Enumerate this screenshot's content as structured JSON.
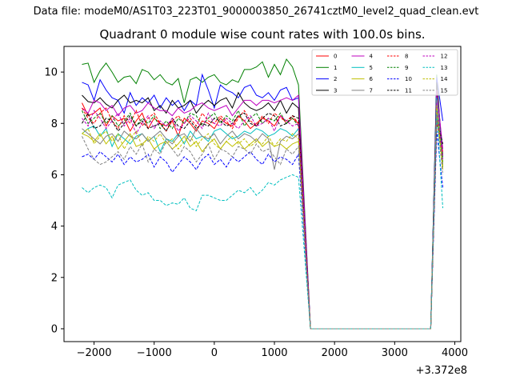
{
  "suptitle": "Data file: modeM0/AS1T03_223T01_9000003850_26741cztM0_level2_quad_clean.evt",
  "chart_data": {
    "type": "line",
    "title": "Quadrant 0 module wise count rates with 100.0s bins.",
    "xlabel": "",
    "ylabel": "",
    "x_offset_label": "+3.372e8",
    "xlim": [
      -2500,
      4100
    ],
    "ylim": [
      -0.5,
      11.0
    ],
    "xticks": [
      -2000,
      -1000,
      0,
      1000,
      2000,
      3000,
      4000
    ],
    "xtick_labels": [
      "−2000",
      "−1000",
      "0",
      "1000",
      "2000",
      "3000",
      "4000"
    ],
    "yticks": [
      0,
      2,
      4,
      6,
      8,
      10
    ],
    "ytick_labels": [
      "0",
      "2",
      "4",
      "6",
      "8",
      "10"
    ],
    "x": [
      -2200,
      -2100,
      -2000,
      -1900,
      -1800,
      -1700,
      -1600,
      -1500,
      -1400,
      -1300,
      -1200,
      -1100,
      -1000,
      -900,
      -800,
      -700,
      -600,
      -500,
      -400,
      -300,
      -200,
      -100,
      0,
      100,
      200,
      300,
      400,
      500,
      600,
      700,
      800,
      900,
      1000,
      1100,
      1200,
      1300,
      1400,
      1600,
      3500,
      3600,
      3700,
      3800
    ],
    "legend_location": "top-right",
    "series": [
      {
        "name": "0",
        "color": "#ff0000",
        "dash": "solid",
        "values": [
          8.8,
          8.3,
          8.4,
          8.6,
          7.9,
          8.3,
          8.1,
          8.2,
          7.7,
          8.1,
          8.4,
          7.8,
          8.2,
          8.0,
          7.9,
          8.1,
          7.5,
          8.2,
          8.0,
          7.7,
          8.1,
          8.0,
          7.8,
          8.2,
          8.0,
          7.9,
          8.3,
          8.1,
          7.8,
          8.0,
          8.2,
          8.1,
          7.9,
          8.3,
          8.0,
          8.2,
          8.0,
          0,
          0,
          0,
          8.3,
          6.8
        ]
      },
      {
        "name": "1",
        "color": "#008000",
        "dash": "solid",
        "values": [
          10.3,
          10.35,
          9.6,
          10.05,
          10.35,
          10.0,
          9.6,
          9.8,
          9.85,
          9.55,
          10.1,
          10.0,
          9.7,
          9.9,
          9.6,
          9.5,
          9.75,
          8.8,
          9.7,
          9.8,
          9.6,
          9.8,
          9.9,
          9.6,
          9.5,
          9.7,
          9.6,
          10.1,
          10.1,
          10.2,
          10.4,
          9.8,
          10.3,
          9.9,
          10.5,
          10.2,
          9.5,
          0,
          0,
          0,
          9.9,
          6.3
        ]
      },
      {
        "name": "2",
        "color": "#0000ff",
        "dash": "solid",
        "values": [
          9.6,
          9.5,
          8.9,
          9.7,
          9.3,
          9.0,
          8.9,
          8.4,
          9.2,
          8.7,
          9.0,
          8.8,
          9.1,
          8.6,
          9.0,
          8.7,
          8.9,
          8.5,
          8.9,
          8.7,
          9.9,
          9.3,
          8.6,
          9.5,
          9.3,
          9.2,
          9.0,
          9.4,
          9.5,
          9.1,
          9.0,
          9.2,
          8.9,
          9.3,
          9.4,
          8.9,
          9.0,
          0,
          0,
          0,
          9.8,
          8.1
        ]
      },
      {
        "name": "3",
        "color": "#000000",
        "dash": "solid",
        "values": [
          9.1,
          8.85,
          8.8,
          9.0,
          8.75,
          8.6,
          8.9,
          9.1,
          8.8,
          8.9,
          8.8,
          9.0,
          8.5,
          8.7,
          8.4,
          8.9,
          8.6,
          8.7,
          8.9,
          8.4,
          8.7,
          8.9,
          8.7,
          8.9,
          9.0,
          8.6,
          9.2,
          8.8,
          8.6,
          8.5,
          8.6,
          8.8,
          8.5,
          8.9,
          8.4,
          8.8,
          8.6,
          0,
          0,
          0,
          9.6,
          6.7
        ]
      },
      {
        "name": "4",
        "color": "#bf00bf",
        "dash": "solid",
        "values": [
          8.6,
          8.4,
          8.9,
          8.8,
          8.5,
          8.7,
          8.3,
          8.6,
          8.7,
          8.4,
          8.5,
          8.8,
          8.6,
          8.5,
          8.5,
          8.3,
          8.6,
          8.4,
          8.5,
          8.7,
          8.8,
          8.6,
          8.5,
          8.6,
          8.7,
          8.3,
          8.6,
          8.9,
          8.9,
          8.7,
          8.9,
          8.9,
          8.8,
          8.9,
          9.0,
          8.9,
          9.1,
          0,
          0,
          0,
          9.3,
          7.0
        ]
      },
      {
        "name": "5",
        "color": "#00bfbf",
        "dash": "solid",
        "values": [
          7.6,
          7.8,
          7.9,
          7.5,
          7.8,
          7.1,
          7.6,
          7.4,
          7.2,
          7.5,
          7.6,
          7.3,
          7.5,
          6.9,
          7.4,
          7.3,
          7.6,
          7.2,
          7.7,
          7.4,
          7.5,
          7.3,
          7.7,
          7.8,
          7.6,
          7.4,
          7.5,
          7.7,
          7.6,
          7.8,
          7.7,
          7.5,
          7.6,
          7.8,
          7.7,
          7.5,
          7.8,
          0,
          0,
          0,
          9.0,
          6.6
        ]
      },
      {
        "name": "6",
        "color": "#bfbf00",
        "dash": "solid",
        "values": [
          7.6,
          7.5,
          7.3,
          7.6,
          7.2,
          7.5,
          7.0,
          7.3,
          7.6,
          7.1,
          7.2,
          7.4,
          7.0,
          7.2,
          7.3,
          7.0,
          7.2,
          7.5,
          7.1,
          7.3,
          6.9,
          7.2,
          7.4,
          7.0,
          7.3,
          7.1,
          7.3,
          7.0,
          7.2,
          7.4,
          7.1,
          7.3,
          7.1,
          7.2,
          7.0,
          7.2,
          7.3,
          0,
          0,
          0,
          8.6,
          6.2
        ]
      },
      {
        "name": "7",
        "color": "#808080",
        "dash": "solid",
        "values": [
          7.8,
          7.6,
          7.4,
          7.2,
          7.5,
          7.6,
          7.3,
          7.7,
          7.5,
          7.4,
          7.6,
          7.3,
          7.5,
          7.7,
          7.4,
          7.2,
          7.5,
          7.6,
          7.3,
          7.8,
          7.5,
          7.4,
          7.6,
          7.2,
          7.5,
          7.7,
          7.4,
          7.6,
          7.5,
          7.3,
          7.6,
          7.4,
          6.2,
          7.3,
          7.5,
          7.4,
          7.6,
          0,
          0,
          0,
          8.9,
          6.4
        ]
      },
      {
        "name": "8",
        "color": "#ff0000",
        "dash": "dashed",
        "values": [
          8.6,
          8.2,
          8.0,
          8.4,
          8.6,
          8.1,
          7.8,
          8.3,
          8.0,
          8.5,
          7.9,
          8.2,
          8.4,
          8.0,
          7.7,
          8.1,
          8.3,
          8.0,
          8.2,
          7.9,
          8.4,
          8.1,
          8.0,
          8.3,
          8.1,
          7.8,
          8.2,
          8.5,
          8.1,
          7.9,
          8.3,
          8.0,
          8.4,
          8.2,
          8.1,
          8.3,
          8.0,
          0,
          0,
          0,
          8.0,
          6.9
        ]
      },
      {
        "name": "9",
        "color": "#008000",
        "dash": "dashed",
        "values": [
          8.5,
          8.0,
          8.2,
          8.4,
          8.0,
          8.3,
          7.9,
          8.1,
          8.4,
          7.9,
          8.2,
          8.0,
          8.3,
          7.8,
          8.1,
          7.8,
          8.2,
          8.0,
          8.4,
          8.3,
          7.9,
          8.2,
          8.4,
          8.0,
          8.3,
          8.1,
          8.5,
          7.9,
          8.2,
          8.4,
          8.0,
          8.2,
          8.1,
          8.4,
          8.0,
          8.2,
          7.9,
          0,
          0,
          0,
          8.5,
          6.5
        ]
      },
      {
        "name": "10",
        "color": "#0000ff",
        "dash": "dashed",
        "values": [
          6.7,
          6.8,
          6.6,
          6.9,
          6.7,
          6.5,
          6.8,
          6.4,
          6.7,
          6.5,
          6.6,
          6.8,
          6.3,
          6.7,
          6.5,
          6.1,
          6.4,
          6.7,
          6.5,
          6.2,
          6.6,
          6.8,
          6.4,
          6.6,
          6.3,
          6.7,
          6.5,
          6.7,
          6.9,
          6.6,
          6.4,
          6.8,
          6.5,
          6.7,
          6.6,
          6.4,
          6.8,
          0,
          0,
          0,
          7.7,
          5.5
        ]
      },
      {
        "name": "11",
        "color": "#000000",
        "dash": "dashed",
        "values": [
          8.0,
          8.4,
          7.8,
          7.9,
          8.2,
          8.1,
          7.7,
          8.0,
          8.3,
          7.9,
          8.1,
          7.8,
          7.9,
          8.0,
          7.7,
          8.2,
          7.9,
          7.8,
          8.1,
          7.8,
          8.0,
          7.9,
          8.2,
          8.1,
          7.9,
          8.0,
          8.3,
          8.4,
          8.0,
          7.9,
          8.2,
          8.4,
          8.3,
          7.9,
          8.0,
          8.3,
          8.2,
          0,
          0,
          0,
          8.2,
          7.2
        ]
      },
      {
        "name": "12",
        "color": "#bf00bf",
        "dash": "dashed",
        "values": [
          8.2,
          7.9,
          8.5,
          8.2,
          7.8,
          8.1,
          8.4,
          7.9,
          8.2,
          7.6,
          8.0,
          8.3,
          7.8,
          8.1,
          7.9,
          8.2,
          7.7,
          8.0,
          8.3,
          8.1,
          7.8,
          8.4,
          8.0,
          7.9,
          8.2,
          8.0,
          7.8,
          8.1,
          8.3,
          7.9,
          8.0,
          8.2,
          7.7,
          8.3,
          8.1,
          7.9,
          8.0,
          0,
          0,
          0,
          8.8,
          6.6
        ]
      },
      {
        "name": "13",
        "color": "#00bfbf",
        "dash": "dashed",
        "values": [
          5.5,
          5.3,
          5.5,
          5.6,
          5.5,
          5.1,
          5.6,
          5.7,
          5.8,
          5.4,
          5.2,
          5.3,
          5.0,
          5.0,
          4.8,
          4.9,
          4.85,
          5.1,
          4.7,
          4.6,
          5.2,
          5.2,
          5.1,
          5.0,
          5.0,
          5.2,
          5.4,
          5.3,
          5.5,
          5.2,
          5.4,
          5.7,
          5.6,
          5.8,
          5.9,
          6.0,
          5.9,
          0,
          0,
          0,
          8.5,
          4.7
        ]
      },
      {
        "name": "14",
        "color": "#bfbf00",
        "dash": "dashed",
        "values": [
          7.6,
          7.8,
          7.2,
          7.5,
          7.7,
          7.3,
          7.6,
          7.0,
          7.4,
          7.7,
          7.1,
          7.5,
          7.3,
          7.6,
          7.2,
          7.4,
          7.0,
          7.3,
          7.5,
          7.1,
          7.4,
          7.6,
          7.2,
          7.0,
          7.3,
          7.5,
          7.2,
          7.4,
          7.1,
          7.3,
          7.2,
          7.5,
          7.1,
          7.4,
          7.3,
          7.6,
          7.4,
          0,
          0,
          0,
          8.7,
          6.3
        ]
      },
      {
        "name": "15",
        "color": "#808080",
        "dash": "dashed",
        "values": [
          7.5,
          7.0,
          6.6,
          6.4,
          6.5,
          6.7,
          6.9,
          6.6,
          7.1,
          6.8,
          7.2,
          6.5,
          7.0,
          6.8,
          7.3,
          7.0,
          6.7,
          7.1,
          6.9,
          6.5,
          6.8,
          7.2,
          6.6,
          7.0,
          6.9,
          6.7,
          7.1,
          7.0,
          6.8,
          7.2,
          6.9,
          7.0,
          6.7,
          6.4,
          7.0,
          6.8,
          7.1,
          0,
          0,
          0,
          8.4,
          6.0
        ]
      }
    ]
  }
}
